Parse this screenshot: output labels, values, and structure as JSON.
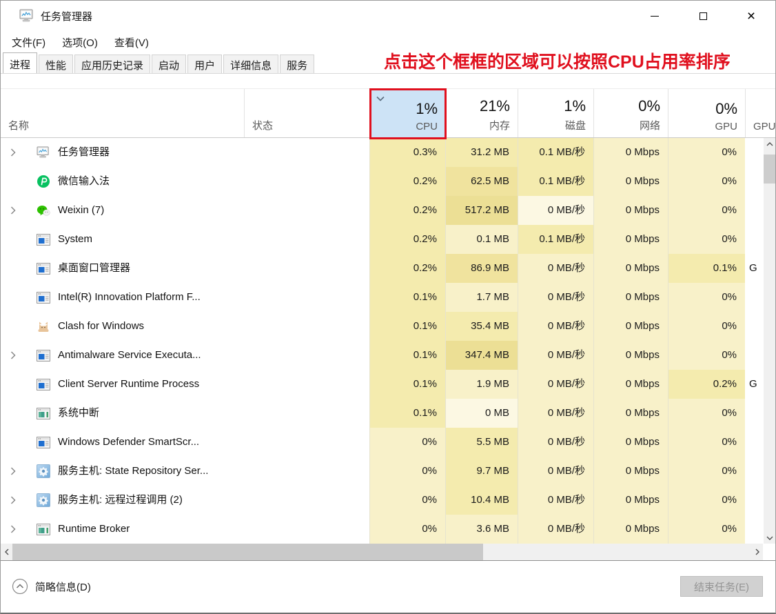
{
  "window": {
    "title": "任务管理器"
  },
  "menu": {
    "items": [
      "文件(F)",
      "选项(O)",
      "查看(V)"
    ]
  },
  "tabs": {
    "active_tab": "进程",
    "items": [
      "进程",
      "性能",
      "应用历史记录",
      "启动",
      "用户",
      "详细信息",
      "服务"
    ]
  },
  "annotation": {
    "text": "点击这个框框的区域可以按照CPU占用率排序",
    "color": "#e0101e"
  },
  "table": {
    "columns": [
      {
        "key": "name",
        "label": "名称",
        "usage": ""
      },
      {
        "key": "status",
        "label": "状态",
        "usage": ""
      },
      {
        "key": "cpu",
        "label": "CPU",
        "usage": "1%",
        "sorted": "desc"
      },
      {
        "key": "mem",
        "label": "内存",
        "usage": "21%"
      },
      {
        "key": "disk",
        "label": "磁盘",
        "usage": "1%"
      },
      {
        "key": "net",
        "label": "网络",
        "usage": "0%"
      },
      {
        "key": "gpu",
        "label": "GPU",
        "usage": "0%"
      },
      {
        "key": "gpu_engine",
        "label": "GPU",
        "usage": ""
      }
    ],
    "rows": [
      {
        "name": "任务管理器",
        "icon": "task-manager",
        "expandable": true,
        "cpu": "0.3%",
        "mem": "31.2 MB",
        "disk": "0.1 MB/秒",
        "net": "0 Mbps",
        "gpu": "0%",
        "gpu_engine": "",
        "heat": {
          "cpu": 2,
          "mem": 2,
          "disk": 2,
          "net": 1,
          "gpu": 1
        }
      },
      {
        "name": "微信输入法",
        "icon": "wechat-input",
        "expandable": false,
        "cpu": "0.2%",
        "mem": "62.5 MB",
        "disk": "0.1 MB/秒",
        "net": "0 Mbps",
        "gpu": "0%",
        "gpu_engine": "",
        "heat": {
          "cpu": 2,
          "mem": 3,
          "disk": 2,
          "net": 1,
          "gpu": 1
        }
      },
      {
        "name": "Weixin (7)",
        "icon": "wechat",
        "expandable": true,
        "cpu": "0.2%",
        "mem": "517.2 MB",
        "disk": "0 MB/秒",
        "net": "0 Mbps",
        "gpu": "0%",
        "gpu_engine": "",
        "heat": {
          "cpu": 2,
          "mem": 4,
          "disk": 0,
          "net": 1,
          "gpu": 1
        }
      },
      {
        "name": "System",
        "icon": "window-blue",
        "expandable": false,
        "cpu": "0.2%",
        "mem": "0.1 MB",
        "disk": "0.1 MB/秒",
        "net": "0 Mbps",
        "gpu": "0%",
        "gpu_engine": "",
        "heat": {
          "cpu": 2,
          "mem": 1,
          "disk": 2,
          "net": 1,
          "gpu": 1
        }
      },
      {
        "name": "桌面窗口管理器",
        "icon": "window-blue",
        "expandable": false,
        "cpu": "0.2%",
        "mem": "86.9 MB",
        "disk": "0 MB/秒",
        "net": "0 Mbps",
        "gpu": "0.1%",
        "gpu_engine": "G",
        "heat": {
          "cpu": 2,
          "mem": 3,
          "disk": 1,
          "net": 1,
          "gpu": 2
        }
      },
      {
        "name": "Intel(R) Innovation Platform F...",
        "icon": "window-blue",
        "expandable": false,
        "cpu": "0.1%",
        "mem": "1.7 MB",
        "disk": "0 MB/秒",
        "net": "0 Mbps",
        "gpu": "0%",
        "gpu_engine": "",
        "heat": {
          "cpu": 2,
          "mem": 1,
          "disk": 1,
          "net": 1,
          "gpu": 1
        }
      },
      {
        "name": "Clash for Windows",
        "icon": "cat",
        "expandable": false,
        "cpu": "0.1%",
        "mem": "35.4 MB",
        "disk": "0 MB/秒",
        "net": "0 Mbps",
        "gpu": "0%",
        "gpu_engine": "",
        "heat": {
          "cpu": 2,
          "mem": 2,
          "disk": 1,
          "net": 1,
          "gpu": 1
        }
      },
      {
        "name": "Antimalware Service Executa...",
        "icon": "window-blue",
        "expandable": true,
        "cpu": "0.1%",
        "mem": "347.4 MB",
        "disk": "0 MB/秒",
        "net": "0 Mbps",
        "gpu": "0%",
        "gpu_engine": "",
        "heat": {
          "cpu": 2,
          "mem": 4,
          "disk": 1,
          "net": 1,
          "gpu": 1
        }
      },
      {
        "name": "Client Server Runtime Process",
        "icon": "window-blue",
        "expandable": false,
        "cpu": "0.1%",
        "mem": "1.9 MB",
        "disk": "0 MB/秒",
        "net": "0 Mbps",
        "gpu": "0.2%",
        "gpu_engine": "G",
        "heat": {
          "cpu": 2,
          "mem": 1,
          "disk": 1,
          "net": 1,
          "gpu": 2
        }
      },
      {
        "name": "系统中断",
        "icon": "window-green",
        "expandable": false,
        "cpu": "0.1%",
        "mem": "0 MB",
        "disk": "0 MB/秒",
        "net": "0 Mbps",
        "gpu": "0%",
        "gpu_engine": "",
        "heat": {
          "cpu": 2,
          "mem": 0,
          "disk": 1,
          "net": 1,
          "gpu": 1
        }
      },
      {
        "name": "Windows Defender SmartScr...",
        "icon": "window-blue",
        "expandable": false,
        "cpu": "0%",
        "mem": "5.5 MB",
        "disk": "0 MB/秒",
        "net": "0 Mbps",
        "gpu": "0%",
        "gpu_engine": "",
        "heat": {
          "cpu": 1,
          "mem": 2,
          "disk": 1,
          "net": 1,
          "gpu": 1
        }
      },
      {
        "name": "服务主机: State Repository Ser...",
        "icon": "gear",
        "expandable": true,
        "cpu": "0%",
        "mem": "9.7 MB",
        "disk": "0 MB/秒",
        "net": "0 Mbps",
        "gpu": "0%",
        "gpu_engine": "",
        "heat": {
          "cpu": 1,
          "mem": 2,
          "disk": 1,
          "net": 1,
          "gpu": 1
        }
      },
      {
        "name": "服务主机: 远程过程调用 (2)",
        "icon": "gear",
        "expandable": true,
        "cpu": "0%",
        "mem": "10.4 MB",
        "disk": "0 MB/秒",
        "net": "0 Mbps",
        "gpu": "0%",
        "gpu_engine": "",
        "heat": {
          "cpu": 1,
          "mem": 2,
          "disk": 1,
          "net": 1,
          "gpu": 1
        }
      },
      {
        "name": "Runtime Broker",
        "icon": "window-green",
        "expandable": true,
        "cpu": "0%",
        "mem": "3.6 MB",
        "disk": "0 MB/秒",
        "net": "0 Mbps",
        "gpu": "0%",
        "gpu_engine": "",
        "heat": {
          "cpu": 1,
          "mem": 1,
          "disk": 1,
          "net": 1,
          "gpu": 1
        }
      }
    ]
  },
  "footer": {
    "details_label": "简略信息(D)",
    "end_task_label": "结束任务(E)"
  },
  "colors": {
    "annotation_red": "#e0101e",
    "sorted_header_bg": "#cde3f6",
    "heat_scale": [
      "#fcf8e3",
      "#f8f1c9",
      "#f4ebae",
      "#f0e39e",
      "#ecdf95"
    ]
  }
}
